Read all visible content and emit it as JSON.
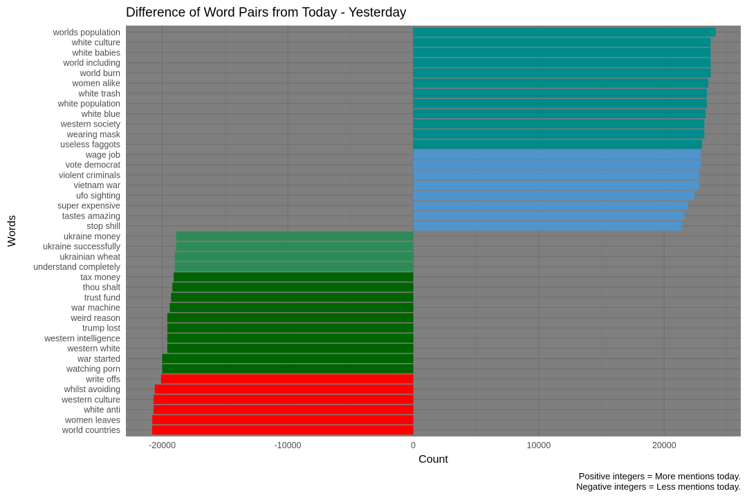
{
  "chart_data": {
    "type": "bar",
    "orientation": "horizontal",
    "title": "Difference of Word Pairs from Today - Yesterday",
    "xlabel": "Count",
    "ylabel": "Words",
    "xlim": [
      -22900,
      26100
    ],
    "x_ticks": [
      {
        "value": -20000,
        "label": "-20000"
      },
      {
        "value": -10000,
        "label": "-10000"
      },
      {
        "value": 0,
        "label": "0"
      },
      {
        "value": 10000,
        "label": "10000"
      },
      {
        "value": 20000,
        "label": "20000"
      }
    ],
    "grid": true,
    "legend": "none",
    "notes": [
      "Positive integers = More mentions today.",
      "Negative integers = Less mentions today."
    ],
    "colors": {
      "panel_bg": "#7f7f7f",
      "grid_major": "#6e6e6e",
      "grid_minor": "#767676",
      "axis_text": "#4d4d4d",
      "title_text": "#000000"
    },
    "bars": [
      {
        "label": "worlds population",
        "value": 24100,
        "color": "#008b8b"
      },
      {
        "label": "white culture",
        "value": 23700,
        "color": "#008b8b"
      },
      {
        "label": "white babies",
        "value": 23700,
        "color": "#008b8b"
      },
      {
        "label": "world including",
        "value": 23700,
        "color": "#008b8b"
      },
      {
        "label": "world burn",
        "value": 23700,
        "color": "#008b8b"
      },
      {
        "label": "women alike",
        "value": 23500,
        "color": "#008b8b"
      },
      {
        "label": "white trash",
        "value": 23400,
        "color": "#008b8b"
      },
      {
        "label": "white population",
        "value": 23400,
        "color": "#008b8b"
      },
      {
        "label": "white blue",
        "value": 23300,
        "color": "#008b8b"
      },
      {
        "label": "western society",
        "value": 23200,
        "color": "#008b8b"
      },
      {
        "label": "wearing mask",
        "value": 23200,
        "color": "#008b8b"
      },
      {
        "label": "useless faggots",
        "value": 23000,
        "color": "#008b8b"
      },
      {
        "label": "wage job",
        "value": 22900,
        "color": "#4f94cd"
      },
      {
        "label": "vote democrat",
        "value": 22900,
        "color": "#4f94cd"
      },
      {
        "label": "violent criminals",
        "value": 22800,
        "color": "#4f94cd"
      },
      {
        "label": "vietnam war",
        "value": 22800,
        "color": "#4f94cd"
      },
      {
        "label": "ufo sighting",
        "value": 22400,
        "color": "#4f94cd"
      },
      {
        "label": "super expensive",
        "value": 21900,
        "color": "#4f94cd"
      },
      {
        "label": "tastes amazing",
        "value": 21600,
        "color": "#4f94cd"
      },
      {
        "label": "stop shill",
        "value": 21400,
        "color": "#4f94cd"
      },
      {
        "label": "ukraine money",
        "value": -18900,
        "color": "#2e8b57"
      },
      {
        "label": "ukraine successfully",
        "value": -18900,
        "color": "#2e8b57"
      },
      {
        "label": "ukrainian wheat",
        "value": -19000,
        "color": "#2e8b57"
      },
      {
        "label": "understand completely",
        "value": -19000,
        "color": "#2e8b57"
      },
      {
        "label": "tax money",
        "value": -19100,
        "color": "#006400"
      },
      {
        "label": "thou shalt",
        "value": -19200,
        "color": "#006400"
      },
      {
        "label": "trust fund",
        "value": -19300,
        "color": "#006400"
      },
      {
        "label": "war machine",
        "value": -19400,
        "color": "#006400"
      },
      {
        "label": "weird reason",
        "value": -19600,
        "color": "#006400"
      },
      {
        "label": "trump lost",
        "value": -19600,
        "color": "#006400"
      },
      {
        "label": "western intelligence",
        "value": -19600,
        "color": "#006400"
      },
      {
        "label": "western white",
        "value": -19600,
        "color": "#006400"
      },
      {
        "label": "war started",
        "value": -20000,
        "color": "#006400"
      },
      {
        "label": "watching porn",
        "value": -20000,
        "color": "#006400"
      },
      {
        "label": "write offs",
        "value": -20100,
        "color": "#ff0000"
      },
      {
        "label": "whilst avoiding",
        "value": -20600,
        "color": "#ff0000"
      },
      {
        "label": "western culture",
        "value": -20700,
        "color": "#ff0000"
      },
      {
        "label": "white anti",
        "value": -20700,
        "color": "#ff0000"
      },
      {
        "label": "women leaves",
        "value": -20800,
        "color": "#ff0000"
      },
      {
        "label": "world countries",
        "value": -20800,
        "color": "#ff0000"
      }
    ]
  }
}
